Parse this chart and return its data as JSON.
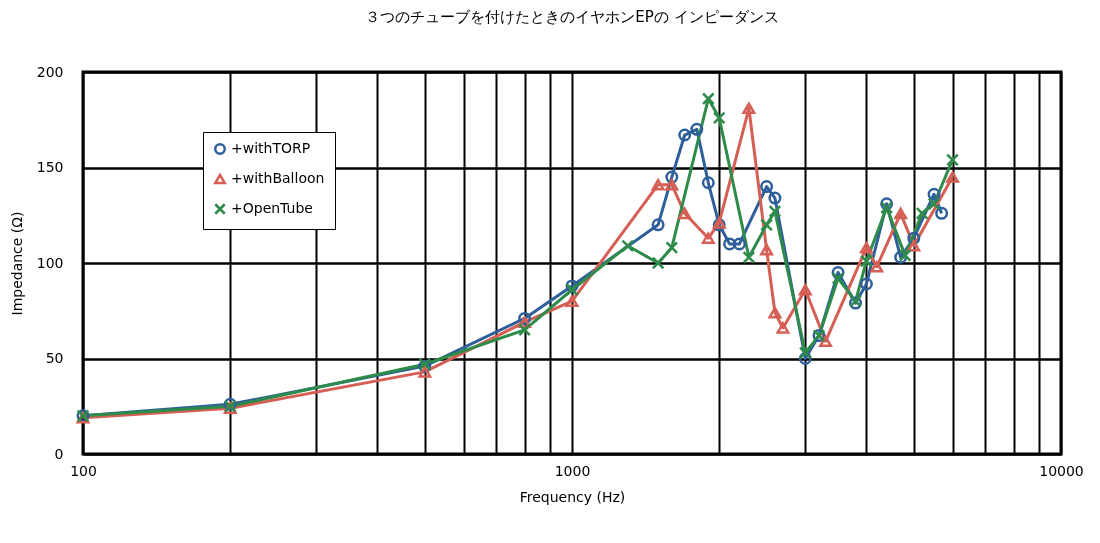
{
  "chart_data": {
    "type": "line",
    "title": "３つのチューブを付けたときのイヤホンEPの インピーダンス",
    "xlabel": "Frequency (Hz)",
    "ylabel": "Impedance (Ω)",
    "log": "x",
    "xlim": [
      100,
      10000
    ],
    "ylim": [
      0,
      200
    ],
    "xticks": [
      100,
      {
        "value": 200,
        "label": null
      },
      {
        "value": 300,
        "label": null
      },
      {
        "value": 400,
        "label": null
      },
      {
        "value": 500,
        "label": null
      },
      {
        "value": 600,
        "label": null
      },
      {
        "value": 700,
        "label": null
      },
      {
        "value": 800,
        "label": null
      },
      {
        "value": 900,
        "label": null
      },
      1000,
      {
        "value": 2000,
        "label": null
      },
      {
        "value": 3000,
        "label": null
      },
      {
        "value": 4000,
        "label": null
      },
      {
        "value": 5000,
        "label": null
      },
      {
        "value": 6000,
        "label": null
      },
      {
        "value": 7000,
        "label": null
      },
      {
        "value": 8000,
        "label": null
      },
      {
        "value": 9000,
        "label": null
      },
      10000
    ],
    "yticks": [
      0,
      50,
      100,
      150,
      200
    ],
    "grid": true,
    "legend": "top left",
    "line_style": "solid",
    "series": [
      {
        "name": "+withTORP",
        "color": "#2e5f9a",
        "marker": "circle",
        "x": [
          100,
          200,
          500,
          800,
          1000,
          1500,
          1600,
          1700,
          1800,
          1900,
          2000,
          2100,
          2200,
          2500,
          2600,
          3000,
          3200,
          3500,
          3800,
          4000,
          4400,
          4700,
          5000,
          5500,
          5700
        ],
        "values": [
          20,
          26,
          46,
          71,
          88,
          120,
          145,
          167,
          170,
          142,
          120,
          110,
          110,
          140,
          134,
          50,
          62,
          95,
          79,
          89,
          131,
          103,
          113,
          136,
          126
        ]
      },
      {
        "name": "+withBalloon",
        "color": "#d65f55",
        "marker": "triangle",
        "x": [
          100,
          200,
          500,
          800,
          1000,
          1500,
          1600,
          1700,
          1900,
          2000,
          2300,
          2500,
          2600,
          2700,
          3000,
          3300,
          4000,
          4200,
          4700,
          5000,
          6000
        ],
        "values": [
          19,
          24,
          43,
          69,
          80,
          141,
          141,
          126,
          113,
          121,
          181,
          107,
          74,
          66,
          86,
          59,
          108,
          98,
          126,
          109,
          145
        ]
      },
      {
        "name": "+OpenTube",
        "color": "#2e8b4a",
        "marker": "cross",
        "x": [
          100,
          200,
          500,
          800,
          1000,
          1300,
          1500,
          1600,
          1900,
          2000,
          2300,
          2500,
          2600,
          3000,
          3200,
          3500,
          3800,
          4000,
          4400,
          4800,
          5200,
          5500,
          6000
        ],
        "values": [
          20,
          25,
          47,
          65,
          86,
          109,
          100,
          108,
          186,
          176,
          103,
          120,
          127,
          53,
          62,
          92,
          80,
          101,
          129,
          104,
          126,
          131,
          154
        ]
      }
    ]
  }
}
